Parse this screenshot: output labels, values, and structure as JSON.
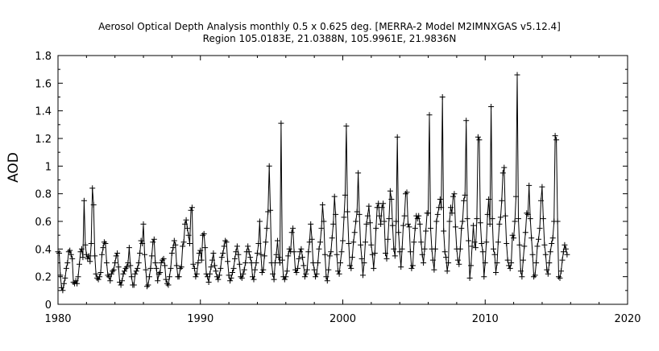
{
  "chart_data": {
    "type": "line",
    "title": "Aerosol Optical Depth Analysis monthly 0.5 x 0.625 deg. [MERRA-2 Model M2IMNXGAS v5.12.4]",
    "subtitle": "Region 105.0183E, 21.0388N, 105.9961E, 21.9836N",
    "xlabel": "",
    "ylabel": "AOD",
    "xlim": [
      1980,
      2020
    ],
    "ylim": [
      0,
      1.8
    ],
    "x_ticks": [
      "1980",
      "1990",
      "2000",
      "2010",
      "2020"
    ],
    "y_ticks": [
      "0",
      "0.2",
      "0.4",
      "0.6",
      "0.8",
      "1",
      "1.2",
      "1.4",
      "1.6",
      "1.8"
    ],
    "grid": false,
    "marker": "+",
    "line_color": "#000000",
    "series": [
      {
        "start": 1980.0,
        "step_years": 0.08333,
        "values": [
          0.38,
          0.37,
          0.21,
          0.12,
          0.1,
          0.15,
          0.19,
          0.26,
          0.3,
          0.38,
          0.39,
          0.36,
          0.33,
          0.16,
          0.15,
          0.17,
          0.15,
          0.2,
          0.29,
          0.38,
          0.4,
          0.34,
          0.75,
          0.43,
          0.36,
          0.33,
          0.35,
          0.31,
          0.44,
          0.84,
          0.72,
          0.35,
          0.22,
          0.19,
          0.18,
          0.2,
          0.23,
          0.36,
          0.41,
          0.45,
          0.44,
          0.3,
          0.21,
          0.2,
          0.17,
          0.22,
          0.24,
          0.25,
          0.3,
          0.35,
          0.37,
          0.27,
          0.16,
          0.14,
          0.17,
          0.22,
          0.24,
          0.26,
          0.27,
          0.3,
          0.41,
          0.28,
          0.2,
          0.14,
          0.14,
          0.22,
          0.24,
          0.26,
          0.3,
          0.37,
          0.46,
          0.44,
          0.58,
          0.36,
          0.25,
          0.13,
          0.14,
          0.2,
          0.26,
          0.35,
          0.45,
          0.47,
          0.3,
          0.26,
          0.17,
          0.22,
          0.23,
          0.3,
          0.32,
          0.33,
          0.28,
          0.18,
          0.15,
          0.14,
          0.2,
          0.26,
          0.37,
          0.41,
          0.46,
          0.43,
          0.28,
          0.2,
          0.2,
          0.26,
          0.27,
          0.42,
          0.45,
          0.58,
          0.61,
          0.55,
          0.5,
          0.44,
          0.68,
          0.7,
          0.29,
          0.26,
          0.2,
          0.22,
          0.3,
          0.37,
          0.39,
          0.32,
          0.5,
          0.51,
          0.41,
          0.22,
          0.2,
          0.16,
          0.22,
          0.27,
          0.32,
          0.37,
          0.28,
          0.24,
          0.2,
          0.18,
          0.21,
          0.26,
          0.34,
          0.37,
          0.42,
          0.46,
          0.45,
          0.31,
          0.21,
          0.17,
          0.19,
          0.23,
          0.26,
          0.33,
          0.38,
          0.42,
          0.36,
          0.29,
          0.2,
          0.19,
          0.22,
          0.25,
          0.3,
          0.38,
          0.42,
          0.38,
          0.34,
          0.3,
          0.2,
          0.18,
          0.25,
          0.3,
          0.37,
          0.44,
          0.6,
          0.36,
          0.23,
          0.25,
          0.35,
          0.45,
          0.55,
          0.67,
          1.0,
          0.68,
          0.3,
          0.22,
          0.18,
          0.3,
          0.36,
          0.46,
          0.34,
          0.3,
          1.31,
          0.32,
          0.2,
          0.18,
          0.2,
          0.24,
          0.35,
          0.4,
          0.38,
          0.52,
          0.55,
          0.38,
          0.25,
          0.23,
          0.26,
          0.33,
          0.38,
          0.4,
          0.34,
          0.28,
          0.2,
          0.22,
          0.25,
          0.38,
          0.45,
          0.58,
          0.47,
          0.3,
          0.25,
          0.2,
          0.22,
          0.3,
          0.4,
          0.45,
          0.55,
          0.72,
          0.6,
          0.36,
          0.2,
          0.17,
          0.25,
          0.35,
          0.38,
          0.48,
          0.58,
          0.78,
          0.65,
          0.36,
          0.24,
          0.22,
          0.3,
          0.38,
          0.46,
          0.63,
          0.79,
          1.29,
          0.67,
          0.44,
          0.28,
          0.26,
          0.34,
          0.45,
          0.52,
          0.6,
          0.67,
          0.95,
          0.65,
          0.43,
          0.33,
          0.21,
          0.3,
          0.45,
          0.58,
          0.64,
          0.71,
          0.59,
          0.43,
          0.36,
          0.26,
          0.37,
          0.55,
          0.7,
          0.73,
          0.64,
          0.58,
          0.7,
          0.73,
          0.6,
          0.37,
          0.33,
          0.47,
          0.62,
          0.82,
          0.76,
          0.57,
          0.4,
          0.35,
          0.6,
          1.21,
          0.52,
          0.38,
          0.27,
          0.4,
          0.57,
          0.64,
          0.8,
          0.81,
          0.58,
          0.56,
          0.38,
          0.26,
          0.28,
          0.45,
          0.55,
          0.64,
          0.62,
          0.64,
          0.58,
          0.45,
          0.36,
          0.3,
          0.4,
          0.53,
          0.66,
          0.66,
          1.37,
          0.55,
          0.4,
          0.32,
          0.25,
          0.4,
          0.6,
          0.65,
          0.7,
          0.76,
          0.7,
          1.5,
          0.53,
          0.38,
          0.34,
          0.24,
          0.3,
          0.6,
          0.7,
          0.66,
          0.78,
          0.8,
          0.56,
          0.4,
          0.32,
          0.29,
          0.4,
          0.55,
          0.6,
          0.75,
          0.79,
          1.33,
          0.62,
          0.46,
          0.19,
          0.28,
          0.42,
          0.57,
          0.45,
          0.41,
          0.62,
          1.21,
          1.19,
          0.59,
          0.44,
          0.38,
          0.2,
          0.3,
          0.45,
          0.65,
          0.76,
          0.58,
          1.43,
          0.62,
          0.4,
          0.36,
          0.23,
          0.3,
          0.45,
          0.58,
          0.63,
          0.75,
          0.95,
          0.99,
          0.64,
          0.44,
          0.32,
          0.28,
          0.26,
          0.3,
          0.5,
          0.48,
          0.6,
          0.78,
          1.66,
          0.62,
          0.43,
          0.24,
          0.2,
          0.32,
          0.42,
          0.52,
          0.66,
          0.65,
          0.86,
          0.62,
          0.48,
          0.36,
          0.2,
          0.21,
          0.3,
          0.42,
          0.47,
          0.55,
          0.75,
          0.85,
          0.62,
          0.43,
          0.36,
          0.25,
          0.22,
          0.3,
          0.38,
          0.44,
          0.48,
          0.6,
          1.22,
          1.19,
          0.6,
          0.2,
          0.19,
          0.24,
          0.32,
          0.38,
          0.43,
          0.4,
          0.36
        ]
      }
    ]
  }
}
